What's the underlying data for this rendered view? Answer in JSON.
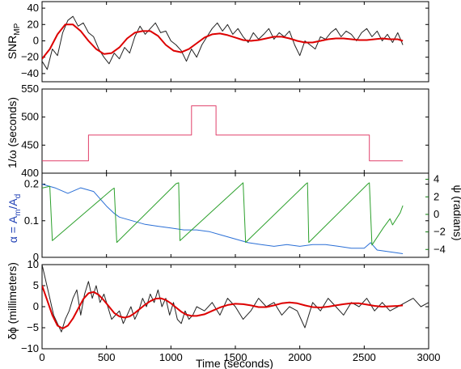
{
  "chart_data": [
    {
      "type": "line",
      "ylabel": "SNR",
      "ylabel_subscript": "MP",
      "xlim": [
        0,
        3000
      ],
      "ylim": [
        -50,
        48
      ],
      "yticks": [
        "40",
        "20",
        "0",
        "−20",
        "−40"
      ],
      "ytick_values": [
        40,
        20,
        0,
        -20,
        -40
      ],
      "series": [
        {
          "color": "#222222",
          "x": [
            0,
            40,
            80,
            120,
            160,
            200,
            240,
            280,
            320,
            360,
            400,
            440,
            480,
            520,
            560,
            600,
            640,
            680,
            720,
            760,
            800,
            840,
            880,
            920,
            960,
            1000,
            1040,
            1080,
            1120,
            1160,
            1200,
            1240,
            1280,
            1320,
            1360,
            1400,
            1440,
            1480,
            1520,
            1560,
            1600,
            1640,
            1680,
            1720,
            1760,
            1800,
            1840,
            1880,
            1920,
            1960,
            2000,
            2040,
            2080,
            2120,
            2160,
            2200,
            2240,
            2280,
            2320,
            2360,
            2400,
            2440,
            2480,
            2520,
            2560,
            2600,
            2640,
            2680,
            2720,
            2760,
            2800
          ],
          "y": [
            -25,
            -35,
            -10,
            -18,
            10,
            25,
            30,
            18,
            22,
            10,
            5,
            -10,
            -20,
            -28,
            -15,
            -22,
            -8,
            -15,
            5,
            18,
            8,
            15,
            22,
            10,
            12,
            0,
            -5,
            -12,
            -25,
            -10,
            -20,
            -5,
            5,
            15,
            22,
            12,
            20,
            8,
            15,
            5,
            -2,
            10,
            2,
            8,
            15,
            2,
            10,
            5,
            12,
            -5,
            -18,
            0,
            -5,
            -10,
            5,
            2,
            10,
            15,
            5,
            12,
            8,
            0,
            10,
            15,
            5,
            12,
            0,
            8,
            -2,
            10,
            -5
          ]
        },
        {
          "color": "#dd0000",
          "x": [
            0,
            60,
            120,
            180,
            240,
            300,
            360,
            420,
            480,
            540,
            600,
            660,
            720,
            780,
            840,
            900,
            960,
            1020,
            1080,
            1140,
            1200,
            1260,
            1320,
            1380,
            1440,
            1500,
            1560,
            1620,
            1680,
            1740,
            1800,
            1860,
            1920,
            1980,
            2040,
            2100,
            2160,
            2220,
            2280,
            2340,
            2400,
            2460,
            2520,
            2580,
            2640,
            2700,
            2760,
            2800
          ],
          "y": [
            -22,
            -10,
            8,
            20,
            20,
            12,
            0,
            -10,
            -16,
            -15,
            -8,
            3,
            10,
            12,
            12,
            6,
            -5,
            -12,
            -14,
            -10,
            -3,
            4,
            8,
            9,
            7,
            4,
            1,
            0,
            1,
            3,
            5,
            5,
            3,
            0,
            -2,
            -2,
            0,
            2,
            3,
            3,
            2,
            1,
            1,
            2,
            3,
            2,
            2,
            0
          ]
        }
      ]
    },
    {
      "type": "line",
      "ylabel": "1/ω (seconds)",
      "xlim": [
        0,
        3000
      ],
      "ylim": [
        400,
        550
      ],
      "yticks": [
        "550",
        "500",
        "450",
        "400"
      ],
      "ytick_values": [
        550,
        500,
        450,
        400
      ],
      "series": [
        {
          "color": "#e0406a",
          "x": [
            0,
            360,
            360,
            1160,
            1160,
            1350,
            1350,
            2540,
            2540,
            2800
          ],
          "y": [
            422,
            422,
            468,
            468,
            520,
            520,
            468,
            468,
            422,
            422
          ]
        }
      ]
    },
    {
      "type": "line",
      "ylabel": "α = A",
      "ylabel_sub1": "m",
      "ylabel_mid": "/A",
      "ylabel_sub2": "d",
      "ylabel_color": "#1f3fb4",
      "ylabel_right": "ψ (radians)",
      "ylabel_right_color": "#0a7a0a",
      "xlim": [
        0,
        3000
      ],
      "ylim": [
        0,
        0.23
      ],
      "yticks": [
        "0.2",
        "0.1",
        "0"
      ],
      "ytick_values": [
        0.2,
        0.1,
        0
      ],
      "ylim_right": [
        -4.9,
        4.7
      ],
      "yticks_right": [
        "4",
        "2",
        "0",
        "−2",
        "−4"
      ],
      "ytick_values_right": [
        4,
        2,
        0,
        -2,
        -4
      ],
      "series": [
        {
          "color": "#2a6fd6",
          "axis": "left",
          "x": [
            0,
            100,
            200,
            300,
            400,
            500,
            560,
            600,
            700,
            800,
            900,
            1000,
            1100,
            1200,
            1300,
            1400,
            1500,
            1600,
            1700,
            1800,
            1900,
            2000,
            2100,
            2200,
            2300,
            2400,
            2500,
            2550,
            2600,
            2700,
            2800
          ],
          "y": [
            0.2,
            0.19,
            0.175,
            0.19,
            0.18,
            0.14,
            0.12,
            0.11,
            0.1,
            0.09,
            0.085,
            0.08,
            0.075,
            0.075,
            0.07,
            0.06,
            0.05,
            0.04,
            0.035,
            0.03,
            0.035,
            0.03,
            0.035,
            0.035,
            0.03,
            0.025,
            0.025,
            0.04,
            0.02,
            0.015,
            0.01
          ]
        },
        {
          "color": "#2ca02c",
          "axis": "right",
          "x": [
            0,
            60,
            80,
            540,
            560,
            580,
            1040,
            1060,
            1070,
            1560,
            1560,
            1580,
            2050,
            2060,
            2070,
            2530,
            2540,
            2560,
            2650,
            2700,
            2720,
            2780,
            2800
          ],
          "y": [
            3.0,
            3.2,
            -3.0,
            2.8,
            3.0,
            -3.2,
            3.5,
            3.6,
            -3.0,
            3.6,
            3.6,
            -3.2,
            3.5,
            3.6,
            -3.2,
            3.5,
            3.6,
            -3.5,
            -1.5,
            -0.5,
            -1.2,
            0.2,
            1.0
          ]
        }
      ]
    },
    {
      "type": "line",
      "ylabel": "δϕ (millimeters)",
      "xlabel": "Time (seconds)",
      "xlim": [
        0,
        3000
      ],
      "ylim": [
        -10,
        10
      ],
      "xticks": [
        "0",
        "500",
        "1000",
        "1500",
        "2000",
        "2500",
        "3000"
      ],
      "xtick_values": [
        0,
        500,
        1000,
        1500,
        2000,
        2500,
        3000
      ],
      "yticks": [
        "10",
        "5",
        "0",
        "−5",
        "−10"
      ],
      "ytick_values": [
        10,
        5,
        0,
        -5,
        -10
      ],
      "series": [
        {
          "color": "#222222",
          "x": [
            0,
            30,
            60,
            90,
            120,
            150,
            180,
            210,
            240,
            270,
            300,
            330,
            360,
            390,
            420,
            450,
            480,
            510,
            540,
            570,
            600,
            630,
            660,
            690,
            720,
            750,
            780,
            810,
            840,
            870,
            900,
            930,
            960,
            990,
            1020,
            1050,
            1080,
            1110,
            1140,
            1170,
            1200,
            1260,
            1320,
            1380,
            1440,
            1500,
            1560,
            1620,
            1680,
            1740,
            1800,
            1860,
            1920,
            1980,
            2040,
            2100,
            2160,
            2220,
            2280,
            2340,
            2400,
            2460,
            2520,
            2580,
            2640,
            2700,
            2760,
            2820,
            2880,
            2940,
            3000
          ],
          "y": [
            10,
            6,
            2,
            -2,
            -4,
            -6,
            -3,
            -1,
            2,
            4,
            -2,
            3,
            6,
            2,
            5,
            1,
            3,
            0,
            -3,
            -2,
            -1,
            -4,
            -2,
            0,
            -3,
            -1,
            2,
            0,
            3,
            1,
            4,
            0,
            2,
            -2,
            1,
            -3,
            -4,
            -1,
            -3,
            -2,
            0,
            -1,
            1,
            -2,
            2,
            0,
            -3,
            -1,
            2,
            0,
            1,
            -2,
            0,
            -1,
            -5,
            1,
            -1,
            2,
            0,
            -2,
            1,
            0,
            2,
            -1,
            1,
            -1,
            0,
            1,
            2,
            0,
            1
          ]
        },
        {
          "color": "#dd0000",
          "x": [
            0,
            40,
            80,
            120,
            160,
            200,
            240,
            280,
            320,
            360,
            400,
            440,
            480,
            520,
            560,
            600,
            640,
            680,
            720,
            760,
            800,
            840,
            880,
            920,
            960,
            1000,
            1040,
            1080,
            1120,
            1160,
            1200,
            1260,
            1320,
            1380,
            1440,
            1500,
            1560,
            1620,
            1680,
            1740,
            1800,
            1860,
            1920,
            1980,
            2040,
            2100,
            2160,
            2220,
            2280,
            2340,
            2400,
            2460,
            2520,
            2580,
            2640,
            2700,
            2760,
            2800
          ],
          "y": [
            5,
            1.5,
            -2,
            -4.5,
            -5.2,
            -4.5,
            -2.8,
            -0.5,
            1.8,
            3.2,
            3.5,
            2.8,
            1.5,
            0,
            -1.5,
            -2.3,
            -2.6,
            -2.3,
            -1.5,
            -0.5,
            0.5,
            1.3,
            1.9,
            2.0,
            1.6,
            0.8,
            -0.2,
            -1.2,
            -1.9,
            -2.2,
            -2.2,
            -1.8,
            -1.0,
            -0.2,
            0.4,
            0.7,
            0.6,
            0.3,
            -0.1,
            -0.1,
            0.3,
            0.8,
            1.0,
            0.8,
            0.3,
            -0.1,
            -0.2,
            0.0,
            0.3,
            0.6,
            0.8,
            0.8,
            0.5,
            0.2,
            0.0,
            0.1,
            0.2,
            0.3
          ]
        }
      ]
    }
  ]
}
